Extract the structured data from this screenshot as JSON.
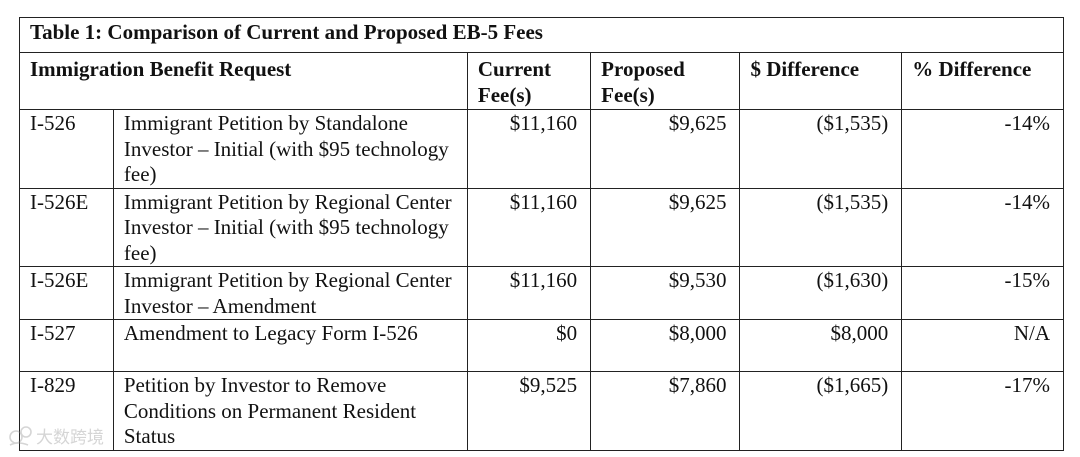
{
  "table": {
    "caption": "Table 1: Comparison of Current and Proposed EB-5 Fees",
    "headers": {
      "request": "Immigration Benefit Request",
      "current": "Current Fee(s)",
      "proposed": "Proposed Fee(s)",
      "difference": "$ Difference",
      "percent": "% Difference"
    },
    "rows": [
      {
        "form": "I-526",
        "description": "Immigrant Petition by Standalone Investor – Initial (with $95 technology fee)",
        "current": "$11,160",
        "proposed": "$9,625",
        "difference": "($1,535)",
        "percent": "-14%"
      },
      {
        "form": "I-526E",
        "description": "Immigrant Petition by Regional Center Investor – Initial (with $95 technology fee)",
        "current": "$11,160",
        "proposed": "$9,625",
        "difference": "($1,535)",
        "percent": "-14%"
      },
      {
        "form": "I-526E",
        "description": "Immigrant Petition by Regional Center Investor – Amendment",
        "current": "$11,160",
        "proposed": "$9,530",
        "difference": "($1,630)",
        "percent": "-15%"
      },
      {
        "form": "I-527",
        "description": "Amendment to Legacy Form I-526",
        "current": "$0",
        "proposed": "$8,000",
        "difference": "$8,000",
        "percent": "N/A"
      },
      {
        "form": "I-829",
        "description": "Petition by Investor to Remove Conditions on Permanent Resident Status",
        "current": "$9,525",
        "proposed": "$7,860",
        "difference": "($1,665)",
        "percent": "-17%"
      }
    ]
  },
  "watermark": {
    "text": "大数跨境"
  }
}
